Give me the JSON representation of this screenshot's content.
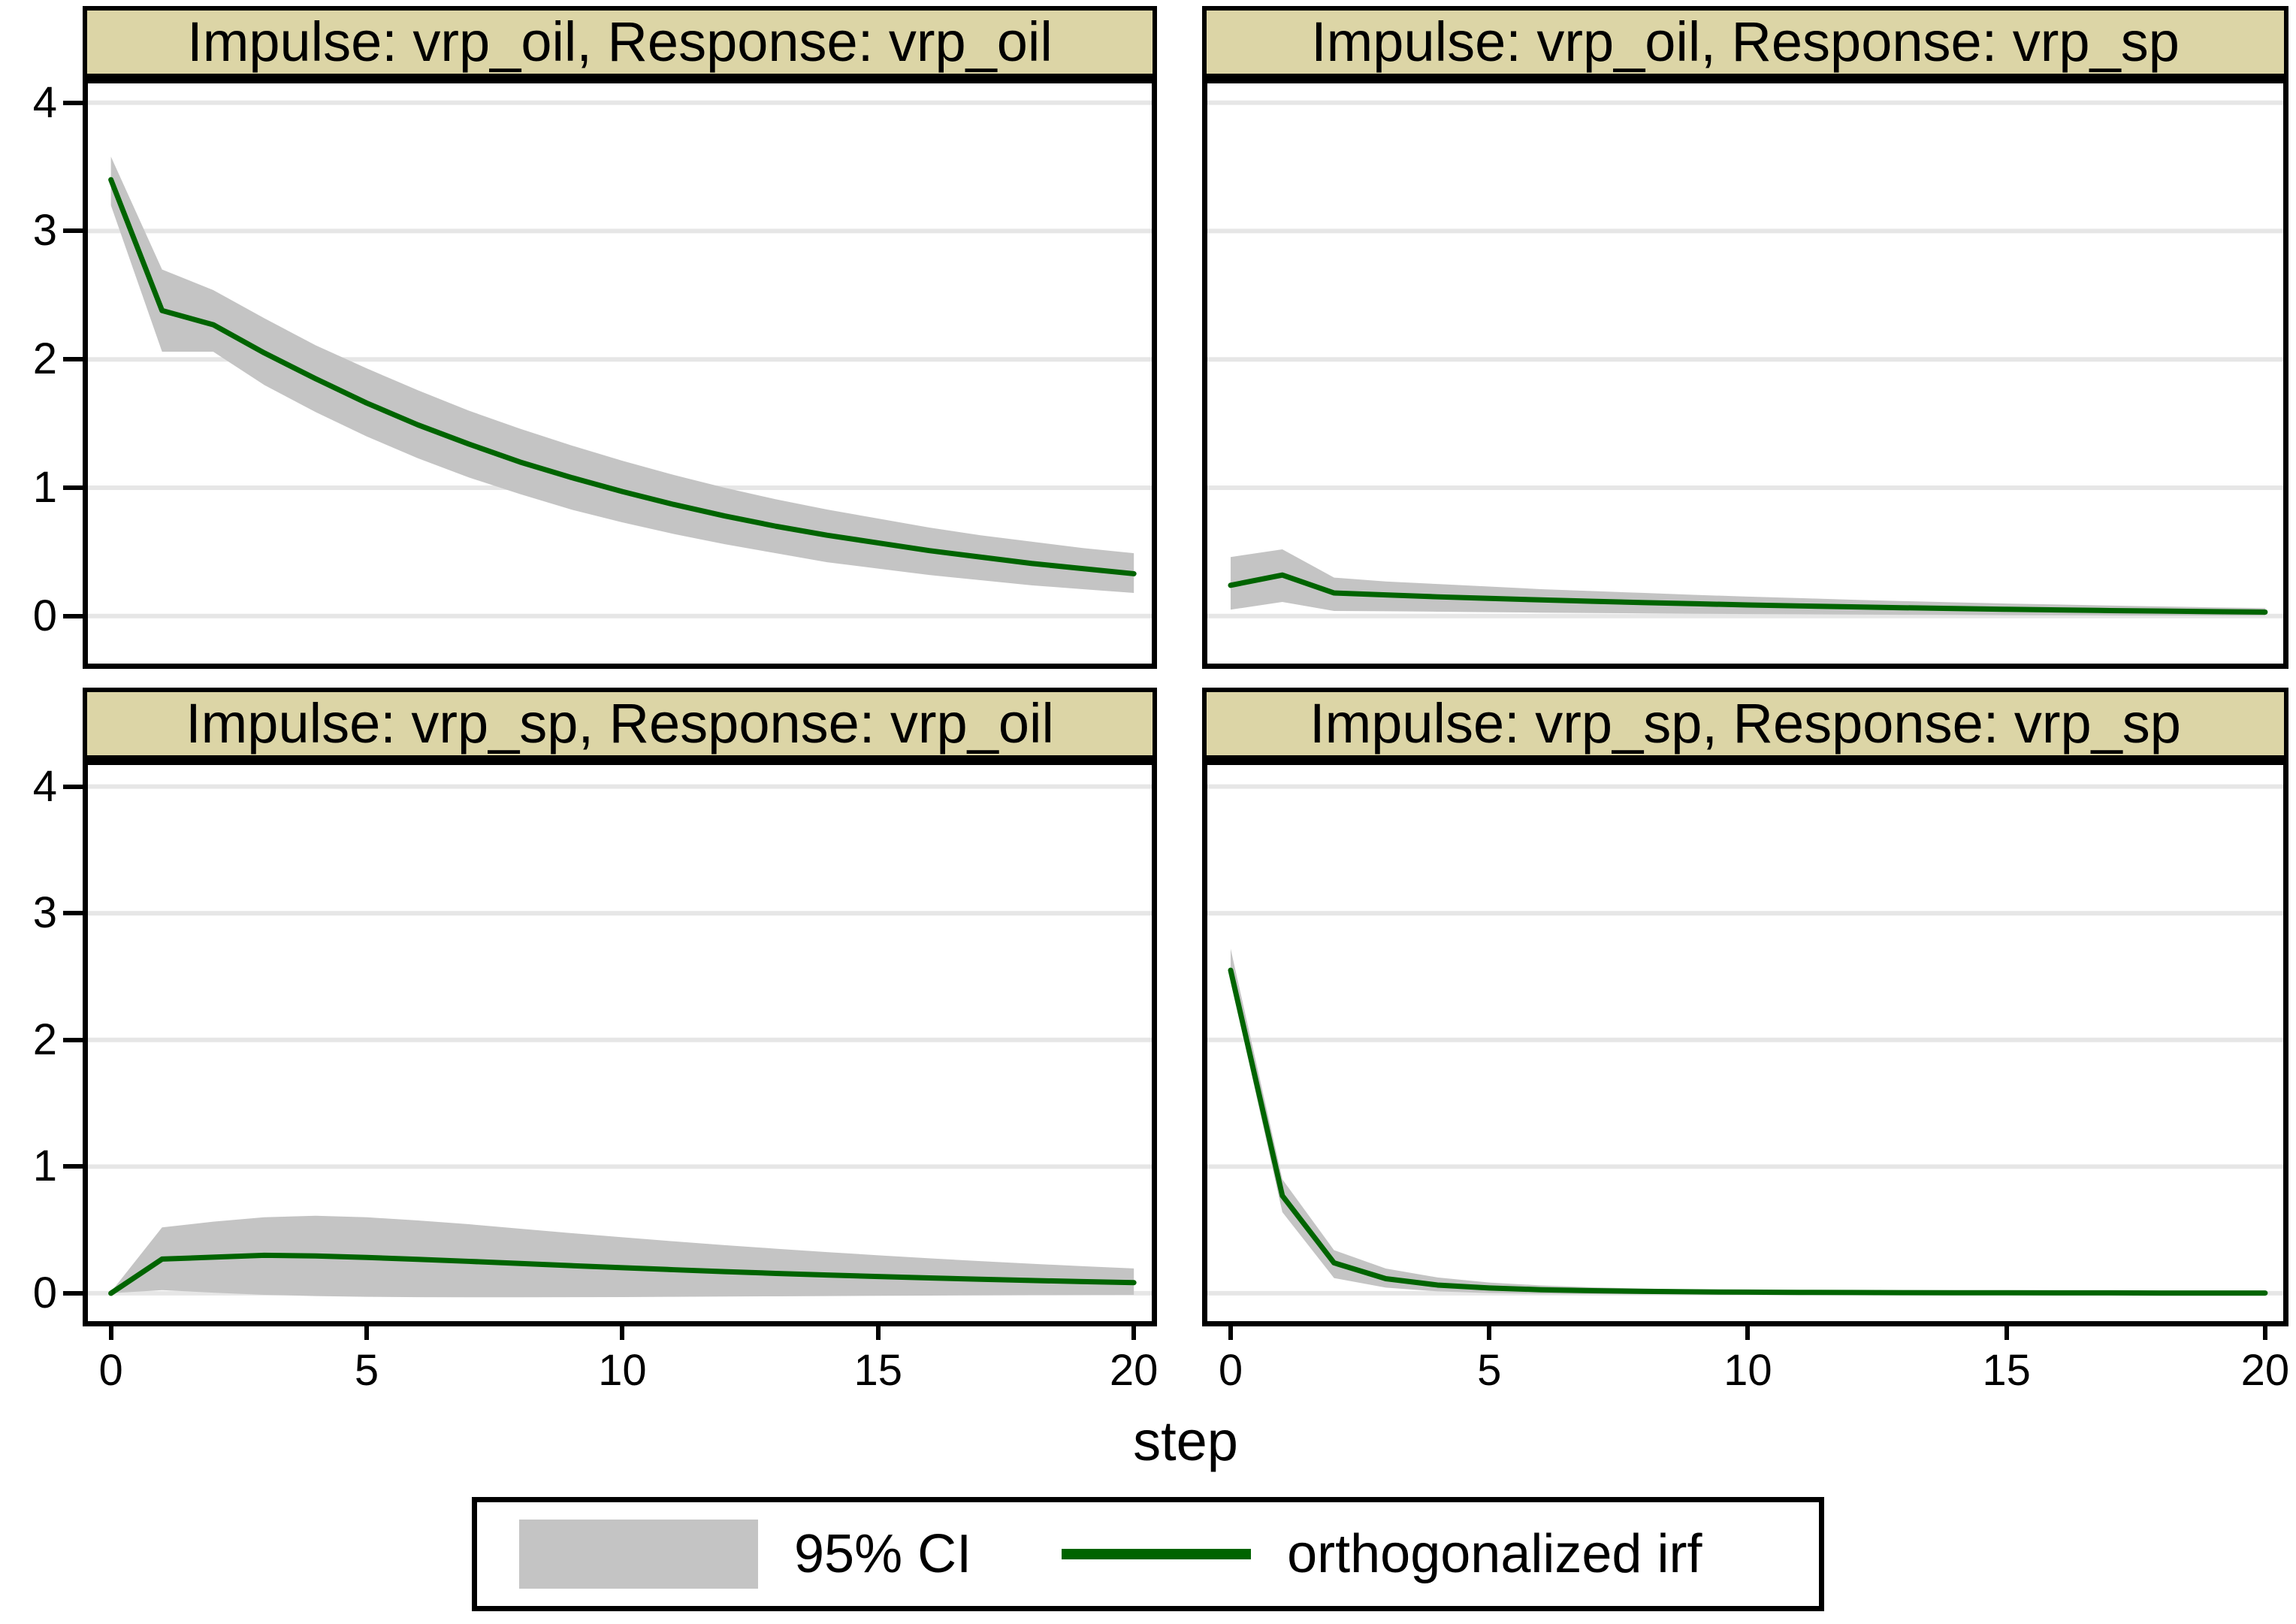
{
  "figure": {
    "xlabel": "step",
    "legend": {
      "ci_label": "95% CI",
      "irf_label": "orthogonalized irf"
    }
  },
  "colors": {
    "band": "#c4c4c4",
    "line": "#006400",
    "strip_bg": "#dcd5a6",
    "grid": "#e6e6e6",
    "border": "#000000",
    "background": "#ffffff"
  },
  "axes": {
    "x_ticks": [
      0,
      5,
      10,
      15,
      20
    ],
    "y_ticks": [
      0,
      1,
      2,
      3,
      4
    ],
    "x_range": [
      0,
      20
    ],
    "y_range": [
      0,
      4
    ],
    "grid": "horizontal-only",
    "legend_position": "bottom-center"
  },
  "chart_data": [
    {
      "type": "line",
      "title": "Impulse: vrp_oil, Response: vrp_oil",
      "impulse": "vrp_oil",
      "response": "vrp_oil",
      "xlabel": "step",
      "x": [
        0,
        1,
        2,
        3,
        4,
        5,
        6,
        7,
        8,
        9,
        10,
        11,
        12,
        13,
        14,
        15,
        16,
        17,
        18,
        19,
        20
      ],
      "irf": [
        3.4,
        2.38,
        2.27,
        2.05,
        1.85,
        1.66,
        1.49,
        1.34,
        1.2,
        1.08,
        0.97,
        0.87,
        0.78,
        0.7,
        0.63,
        0.57,
        0.51,
        0.46,
        0.41,
        0.37,
        0.33
      ],
      "ci_lower": [
        3.2,
        2.06,
        2.06,
        1.8,
        1.59,
        1.4,
        1.23,
        1.08,
        0.95,
        0.83,
        0.73,
        0.64,
        0.56,
        0.49,
        0.42,
        0.37,
        0.32,
        0.28,
        0.24,
        0.21,
        0.18
      ],
      "ci_upper": [
        3.58,
        2.7,
        2.54,
        2.32,
        2.11,
        1.93,
        1.76,
        1.6,
        1.46,
        1.33,
        1.21,
        1.1,
        1.0,
        0.91,
        0.83,
        0.76,
        0.69,
        0.63,
        0.58,
        0.53,
        0.49
      ]
    },
    {
      "type": "line",
      "title": "Impulse: vrp_oil, Response: vrp_sp",
      "impulse": "vrp_oil",
      "response": "vrp_sp",
      "xlabel": "step",
      "x": [
        0,
        1,
        2,
        3,
        4,
        5,
        6,
        7,
        8,
        9,
        10,
        11,
        12,
        13,
        14,
        15,
        16,
        17,
        18,
        19,
        20
      ],
      "irf": [
        0.24,
        0.32,
        0.18,
        0.165,
        0.15,
        0.138,
        0.126,
        0.115,
        0.105,
        0.096,
        0.087,
        0.079,
        0.072,
        0.065,
        0.059,
        0.053,
        0.048,
        0.043,
        0.039,
        0.035,
        0.031
      ],
      "ci_lower": [
        0.05,
        0.11,
        0.04,
        0.038,
        0.034,
        0.03,
        0.027,
        0.024,
        0.021,
        0.018,
        0.016,
        0.014,
        0.012,
        0.01,
        0.009,
        0.007,
        0.006,
        0.005,
        0.004,
        0.004,
        0.003
      ],
      "ci_upper": [
        0.46,
        0.52,
        0.3,
        0.27,
        0.25,
        0.23,
        0.21,
        0.195,
        0.18,
        0.165,
        0.152,
        0.14,
        0.128,
        0.117,
        0.107,
        0.098,
        0.09,
        0.082,
        0.075,
        0.068,
        0.062
      ]
    },
    {
      "type": "line",
      "title": "Impulse: vrp_sp, Response: vrp_oil",
      "impulse": "vrp_sp",
      "response": "vrp_oil",
      "xlabel": "step",
      "x": [
        0,
        1,
        2,
        3,
        4,
        5,
        6,
        7,
        8,
        9,
        10,
        11,
        12,
        13,
        14,
        15,
        16,
        17,
        18,
        19,
        20
      ],
      "irf": [
        0.0,
        0.27,
        0.285,
        0.3,
        0.295,
        0.283,
        0.268,
        0.252,
        0.235,
        0.218,
        0.202,
        0.186,
        0.171,
        0.157,
        0.144,
        0.132,
        0.121,
        0.111,
        0.101,
        0.092,
        0.084
      ],
      "ci_lower": [
        0.0,
        0.025,
        0.005,
        -0.012,
        -0.022,
        -0.028,
        -0.031,
        -0.032,
        -0.032,
        -0.031,
        -0.03,
        -0.028,
        -0.026,
        -0.024,
        -0.022,
        -0.02,
        -0.018,
        -0.016,
        -0.014,
        -0.013,
        -0.012
      ],
      "ci_upper": [
        0.01,
        0.52,
        0.565,
        0.6,
        0.612,
        0.6,
        0.575,
        0.545,
        0.51,
        0.475,
        0.442,
        0.41,
        0.38,
        0.352,
        0.325,
        0.3,
        0.276,
        0.254,
        0.233,
        0.214,
        0.196
      ]
    },
    {
      "type": "line",
      "title": "Impulse: vrp_sp, Response: vrp_sp",
      "impulse": "vrp_sp",
      "response": "vrp_sp",
      "xlabel": "step",
      "x": [
        0,
        1,
        2,
        3,
        4,
        5,
        6,
        7,
        8,
        9,
        10,
        11,
        12,
        13,
        14,
        15,
        16,
        17,
        18,
        19,
        20
      ],
      "irf": [
        2.55,
        0.77,
        0.24,
        0.115,
        0.065,
        0.042,
        0.028,
        0.02,
        0.015,
        0.011,
        0.009,
        0.007,
        0.006,
        0.005,
        0.004,
        0.004,
        0.003,
        0.003,
        0.002,
        0.002,
        0.002
      ],
      "ci_lower": [
        2.47,
        0.64,
        0.12,
        0.045,
        0.015,
        0.002,
        -0.004,
        -0.006,
        -0.007,
        -0.007,
        -0.006,
        -0.006,
        -0.005,
        -0.005,
        -0.004,
        -0.004,
        -0.003,
        -0.003,
        -0.003,
        -0.002,
        -0.002
      ],
      "ci_upper": [
        2.72,
        0.9,
        0.34,
        0.195,
        0.125,
        0.085,
        0.062,
        0.047,
        0.037,
        0.029,
        0.024,
        0.02,
        0.017,
        0.015,
        0.013,
        0.011,
        0.01,
        0.009,
        0.008,
        0.007,
        0.007
      ]
    }
  ]
}
